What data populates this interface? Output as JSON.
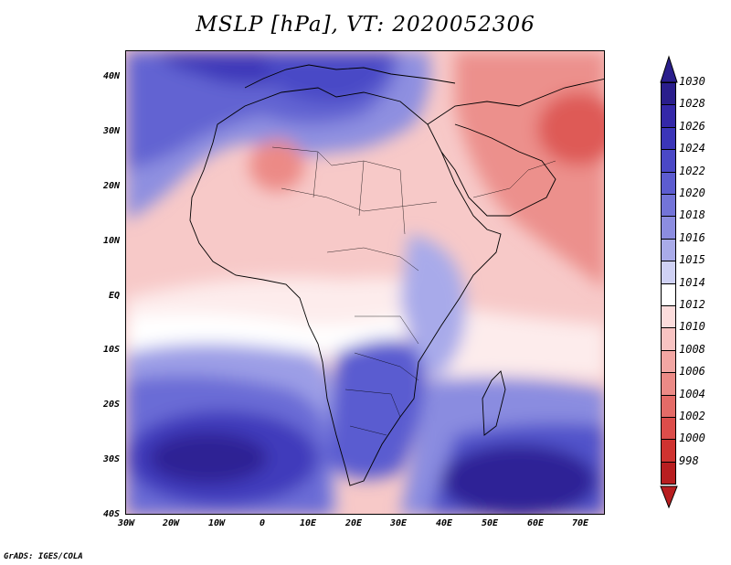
{
  "title": "MSLP [hPa], VT: 2020052306",
  "credit": "GrADS: IGES/COLA",
  "map": {
    "variable": "MSLP",
    "units": "hPa",
    "valid_time": "2020052306",
    "region": "Africa and Middle East",
    "lon_range": [
      -30,
      75
    ],
    "lat_range": [
      -40,
      45
    ],
    "y_tick_labels": [
      "40N",
      "30N",
      "20N",
      "10N",
      "EQ",
      "10S",
      "20S",
      "30S",
      "40S"
    ],
    "x_tick_labels": [
      "30W",
      "20W",
      "10W",
      "0",
      "10E",
      "20E",
      "30E",
      "40E",
      "50E",
      "60E",
      "70E"
    ],
    "highs": [
      "Saint Helena High (South Atlantic)",
      "Mascarene High (South Indian Ocean)",
      "Mediterranean / Azores ridge"
    ],
    "lows": [
      "Arabian / Iranian heat low",
      "Sahara heat low"
    ]
  },
  "colorbar": {
    "levels": [
      {
        "label": "1030",
        "color": "#2a1e8c"
      },
      {
        "label": "1028",
        "color": "#3428a8"
      },
      {
        "label": "1026",
        "color": "#3b35b8"
      },
      {
        "label": "1024",
        "color": "#4a48c6"
      },
      {
        "label": "1022",
        "color": "#5c5cd0"
      },
      {
        "label": "1020",
        "color": "#7374d8"
      },
      {
        "label": "1018",
        "color": "#8c8de0"
      },
      {
        "label": "1016",
        "color": "#a9abe9"
      },
      {
        "label": "1015",
        "color": "#cfd1f4"
      },
      {
        "label": "1014",
        "color": "#ffffff"
      },
      {
        "label": "1012",
        "color": "#fcdcdc"
      },
      {
        "label": "1010",
        "color": "#f8c3c2"
      },
      {
        "label": "1008",
        "color": "#f2a6a3"
      },
      {
        "label": "1006",
        "color": "#eb8a86"
      },
      {
        "label": "1004",
        "color": "#e46b67"
      },
      {
        "label": "1002",
        "color": "#dc4d4a"
      },
      {
        "label": "1000",
        "color": "#cf3330"
      },
      {
        "label": "998",
        "color": "#b81e20"
      }
    ]
  }
}
